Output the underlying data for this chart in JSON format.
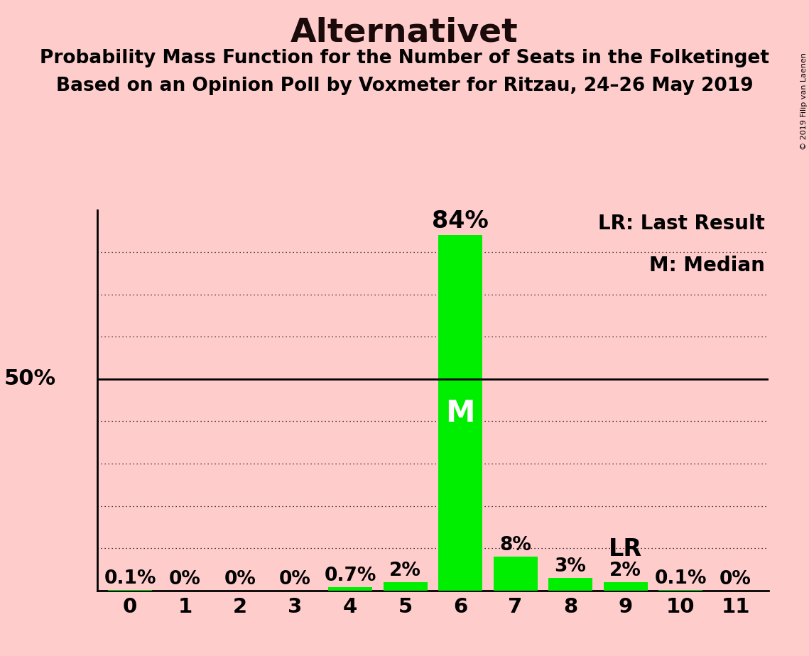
{
  "title": "Alternativet",
  "subtitle1": "Probability Mass Function for the Number of Seats in the Folketinget",
  "subtitle2": "Based on an Opinion Poll by Voxmeter for Ritzau, 24–26 May 2019",
  "copyright": "© 2019 Filip van Laenen",
  "categories": [
    0,
    1,
    2,
    3,
    4,
    5,
    6,
    7,
    8,
    9,
    10,
    11
  ],
  "values": [
    0.1,
    0.0,
    0.0,
    0.0,
    0.7,
    2.0,
    84.0,
    8.0,
    3.0,
    2.0,
    0.1,
    0.0
  ],
  "bar_labels": [
    "0.1%",
    "0%",
    "0%",
    "0%",
    "0.7%",
    "2%",
    "",
    "8%",
    "3%",
    "2%",
    "0.1%",
    "0%"
  ],
  "bar_color": "#00ee00",
  "background_color": "#ffcccc",
  "median_bar": 6,
  "median_label": "M",
  "lr_bar": 9,
  "lr_label": "LR",
  "peak_label": "84%",
  "peak_bar": 6,
  "legend_lr": "LR: Last Result",
  "legend_m": "M: Median",
  "ylim": [
    0,
    90
  ],
  "fifty_pct_line": 50,
  "grid_lines": [
    10,
    20,
    30,
    40,
    50,
    60,
    70,
    80
  ],
  "title_fontsize": 34,
  "subtitle_fontsize": 19,
  "axis_tick_fontsize": 21,
  "bar_label_fontsize": 19,
  "peak_label_fontsize": 24,
  "annotation_fontsize": 22,
  "fifty_label_fontsize": 22,
  "median_label_fontsize": 30,
  "lr_label_fontsize": 24,
  "legend_fontsize": 20,
  "copyright_fontsize": 8
}
